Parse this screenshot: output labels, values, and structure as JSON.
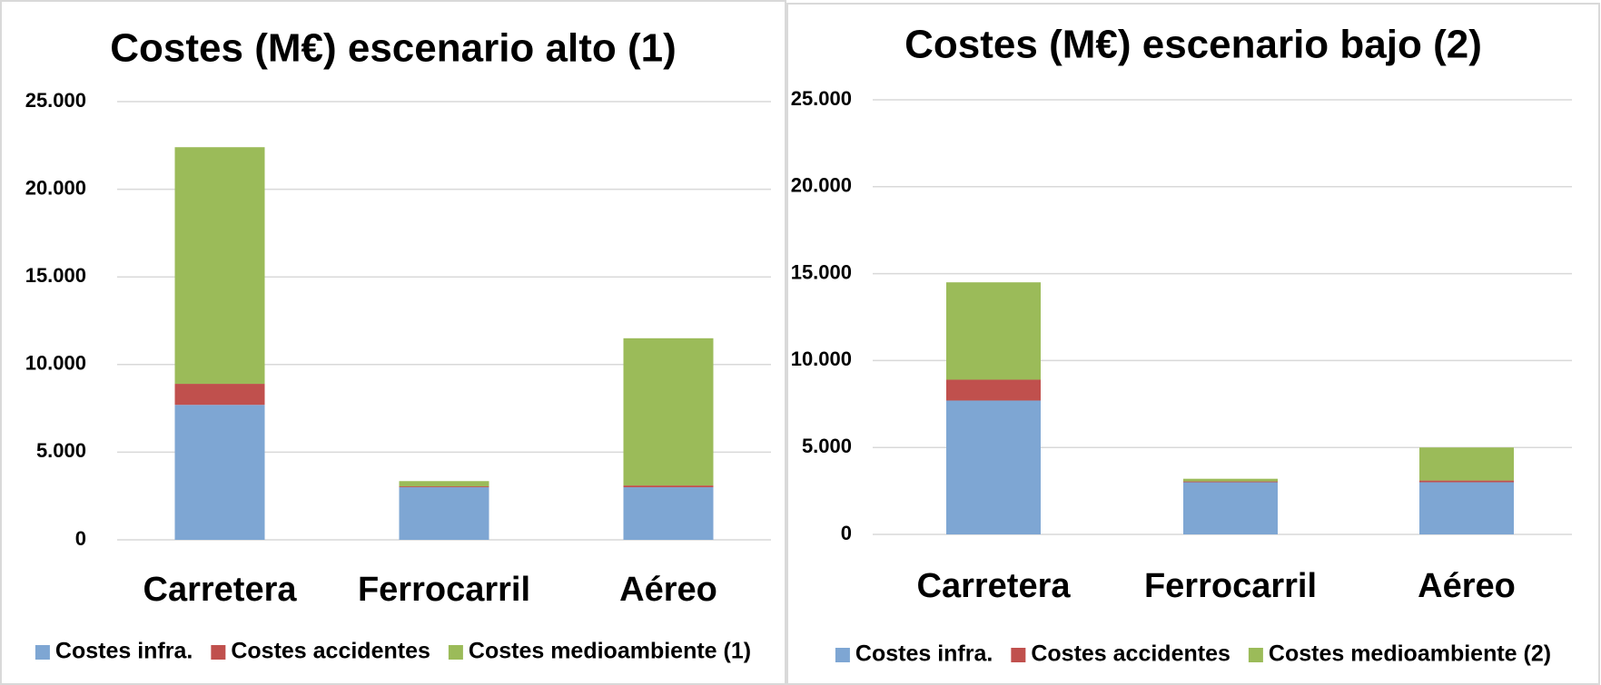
{
  "chart_data": [
    {
      "type": "stacked_bar",
      "title": "Costes  (M€) escenario alto (1)",
      "categories": [
        "Carretera",
        "Ferrocarril",
        "Aéreo"
      ],
      "series": [
        {
          "name": "Costes infra.",
          "color": "#7ea6d3",
          "values": [
            7700,
            3000,
            3000
          ]
        },
        {
          "name": "Costes accidentes",
          "color": "#c0504d",
          "values": [
            1200,
            50,
            100
          ]
        },
        {
          "name": "Costes medioambiente (1)",
          "color": "#9bbb59",
          "values": [
            13500,
            300,
            8400
          ]
        }
      ],
      "ylim": [
        0,
        25000
      ],
      "yticks": [
        0,
        {
          "value": 5000,
          "label": "5.000"
        },
        {
          "value": 10000,
          "label": "10.000"
        },
        {
          "value": 15000,
          "label": "15.000"
        },
        {
          "value": 20000,
          "label": "20.000"
        },
        {
          "value": 25000,
          "label": "25.000"
        }
      ],
      "grid": true,
      "legend": "bottom"
    },
    {
      "type": "stacked_bar",
      "title": "Costes (M€) escenario bajo (2)",
      "categories": [
        "Carretera",
        "Ferrocarril",
        "Aéreo"
      ],
      "series": [
        {
          "name": "Costes infra.",
          "color": "#7ea6d3",
          "values": [
            7700,
            3000,
            3000
          ]
        },
        {
          "name": "Costes accidentes",
          "color": "#c0504d",
          "values": [
            1200,
            50,
            100
          ]
        },
        {
          "name": "Costes medioambiente (2)",
          "color": "#9bbb59",
          "values": [
            5600,
            150,
            1900
          ]
        }
      ],
      "ylim": [
        0,
        25000
      ],
      "yticks": [
        0,
        {
          "value": 5000,
          "label": "5.000"
        },
        {
          "value": 10000,
          "label": "10.000"
        },
        {
          "value": 15000,
          "label": "15.000"
        },
        {
          "value": 20000,
          "label": "20.000"
        },
        {
          "value": 25000,
          "label": "25.000"
        }
      ],
      "grid": true,
      "legend": "bottom"
    }
  ]
}
